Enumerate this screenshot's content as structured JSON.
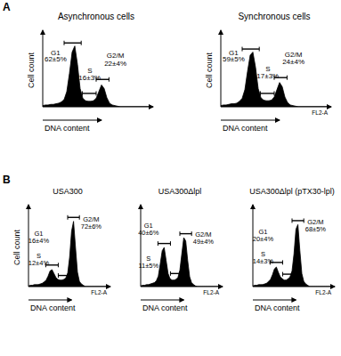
{
  "panels": [
    {
      "label": "A"
    },
    {
      "label": "B"
    }
  ],
  "chart_data": [
    {
      "type": "area",
      "title": "Asynchronous cells",
      "ylabel": "Cell count",
      "xlabel": "DNA content",
      "color": "#000000",
      "tick_labels": false,
      "xlim": [
        0,
        1
      ],
      "ylim": [
        0,
        120
      ],
      "x": [
        0,
        0.025,
        0.05,
        0.075,
        0.1,
        0.125,
        0.15,
        0.175,
        0.2,
        0.225,
        0.25,
        0.275,
        0.3,
        0.325,
        0.35,
        0.375,
        0.4,
        0.425,
        0.45,
        0.475,
        0.5,
        0.525,
        0.55,
        0.575,
        0.6,
        0.625,
        0.65,
        0.675,
        0.7,
        0.725,
        0.75,
        0.775,
        0.8,
        0.825,
        0.85,
        0.875,
        0.9,
        0.925,
        0.95,
        0.975,
        1
      ],
      "values": [
        2,
        3,
        3,
        4,
        4,
        5,
        6,
        8,
        12,
        25,
        55,
        90,
        100,
        70,
        30,
        14,
        10,
        9,
        9,
        10,
        14,
        25,
        36,
        30,
        15,
        6,
        3,
        2,
        1,
        0,
        0,
        0,
        0,
        0,
        0,
        0,
        0,
        0,
        0,
        0,
        0
      ],
      "gates": [
        {
          "start": 0.2,
          "end": 0.36,
          "y": 105
        },
        {
          "start": 0.37,
          "end": 0.5,
          "y": 22
        },
        {
          "start": 0.5,
          "end": 0.62,
          "y": 45
        }
      ],
      "annotations": [
        {
          "text": "G1",
          "x": 0.12,
          "y": 85
        },
        {
          "text": "62±5%",
          "x": 0.12,
          "y": 74
        },
        {
          "text": "S",
          "x": 0.44,
          "y": 55
        },
        {
          "text": "16±3%",
          "x": 0.44,
          "y": 44
        },
        {
          "text": "G2/M",
          "x": 0.68,
          "y": 80
        },
        {
          "text": "22±4%",
          "x": 0.68,
          "y": 68
        }
      ]
    },
    {
      "type": "area",
      "title": "Synchronous cells",
      "ylabel": "Cell count",
      "xlabel": "DNA content",
      "axis_name": "FL2-A",
      "color": "#000000",
      "tick_labels": false,
      "xlim": [
        0,
        1
      ],
      "ylim": [
        0,
        120
      ],
      "x": [
        0,
        0.025,
        0.05,
        0.075,
        0.1,
        0.125,
        0.15,
        0.175,
        0.2,
        0.225,
        0.25,
        0.275,
        0.3,
        0.325,
        0.35,
        0.375,
        0.4,
        0.425,
        0.45,
        0.475,
        0.5,
        0.525,
        0.55,
        0.575,
        0.6,
        0.625,
        0.65,
        0.675,
        0.7,
        0.725,
        0.75,
        0.775,
        0.8,
        0.825,
        0.85,
        0.875,
        0.9,
        0.925,
        0.95,
        0.975,
        1
      ],
      "values": [
        2,
        3,
        3,
        4,
        5,
        5,
        6,
        9,
        14,
        28,
        58,
        85,
        90,
        65,
        30,
        15,
        11,
        10,
        10,
        11,
        16,
        28,
        40,
        33,
        16,
        7,
        3,
        2,
        1,
        0,
        0,
        0,
        0,
        0,
        0,
        0,
        0,
        0,
        0,
        0,
        0
      ],
      "gates": [
        {
          "start": 0.2,
          "end": 0.36,
          "y": 95
        },
        {
          "start": 0.37,
          "end": 0.5,
          "y": 22
        },
        {
          "start": 0.5,
          "end": 0.62,
          "y": 48
        }
      ],
      "annotations": [
        {
          "text": "G1",
          "x": 0.12,
          "y": 85
        },
        {
          "text": "59±5%",
          "x": 0.12,
          "y": 74
        },
        {
          "text": "S",
          "x": 0.44,
          "y": 58
        },
        {
          "text": "17±3%",
          "x": 0.44,
          "y": 47
        },
        {
          "text": "G2/M",
          "x": 0.68,
          "y": 82
        },
        {
          "text": "24±4%",
          "x": 0.68,
          "y": 70
        }
      ]
    },
    {
      "type": "area",
      "title": "USA300",
      "ylabel": "Cell count",
      "xlabel": "DNA content",
      "axis_name": "FL2-A",
      "color": "#000000",
      "tick_labels": false,
      "xlim": [
        0,
        1
      ],
      "ylim": [
        0,
        120
      ],
      "x": [
        0,
        0.025,
        0.05,
        0.075,
        0.1,
        0.125,
        0.15,
        0.175,
        0.2,
        0.225,
        0.25,
        0.275,
        0.3,
        0.325,
        0.35,
        0.375,
        0.4,
        0.425,
        0.45,
        0.475,
        0.5,
        0.525,
        0.55,
        0.575,
        0.6,
        0.625,
        0.65,
        0.675,
        0.7,
        0.725,
        0.75,
        0.775,
        0.8,
        0.825,
        0.85,
        0.875,
        0.9,
        0.925,
        0.95,
        0.975,
        1
      ],
      "values": [
        1,
        2,
        2,
        3,
        3,
        3,
        4,
        5,
        7,
        10,
        16,
        24,
        26,
        20,
        14,
        11,
        10,
        10,
        11,
        13,
        20,
        45,
        85,
        100,
        60,
        22,
        8,
        4,
        2,
        0,
        0,
        0,
        0,
        0,
        0,
        0,
        0,
        0,
        0,
        0,
        0
      ],
      "gates": [
        {
          "start": 0.22,
          "end": 0.38,
          "y": 33
        },
        {
          "start": 0.38,
          "end": 0.5,
          "y": 17
        },
        {
          "start": 0.5,
          "end": 0.65,
          "y": 106
        }
      ],
      "annotations": [
        {
          "text": "G1",
          "x": 0.13,
          "y": 78
        },
        {
          "text": "16±4%",
          "x": 0.13,
          "y": 67
        },
        {
          "text": "S",
          "x": 0.13,
          "y": 44
        },
        {
          "text": "12±4%",
          "x": 0.13,
          "y": 33
        },
        {
          "text": "G2/M",
          "x": 0.8,
          "y": 100
        },
        {
          "text": "72±6%",
          "x": 0.8,
          "y": 89
        }
      ]
    },
    {
      "type": "area",
      "title": "USA300Δlpl",
      "xlabel": "DNA content",
      "axis_name": "FL2-A",
      "color": "#000000",
      "tick_labels": false,
      "xlim": [
        0,
        1
      ],
      "ylim": [
        0,
        120
      ],
      "x": [
        0,
        0.025,
        0.05,
        0.075,
        0.1,
        0.125,
        0.15,
        0.175,
        0.2,
        0.225,
        0.25,
        0.275,
        0.3,
        0.325,
        0.35,
        0.375,
        0.4,
        0.425,
        0.45,
        0.475,
        0.5,
        0.525,
        0.55,
        0.575,
        0.6,
        0.625,
        0.65,
        0.675,
        0.7,
        0.725,
        0.75,
        0.775,
        0.8,
        0.825,
        0.85,
        0.875,
        0.9,
        0.925,
        0.95,
        0.975,
        1
      ],
      "values": [
        1,
        2,
        2,
        3,
        3,
        4,
        5,
        6,
        9,
        16,
        35,
        55,
        60,
        40,
        20,
        12,
        10,
        10,
        11,
        14,
        25,
        50,
        75,
        70,
        40,
        15,
        6,
        3,
        1,
        0,
        0,
        0,
        0,
        0,
        0,
        0,
        0,
        0,
        0,
        0,
        0
      ],
      "gates": [
        {
          "start": 0.22,
          "end": 0.38,
          "y": 66
        },
        {
          "start": 0.38,
          "end": 0.5,
          "y": 20
        },
        {
          "start": 0.5,
          "end": 0.65,
          "y": 81
        }
      ],
      "annotations": [
        {
          "text": "G1",
          "x": 0.1,
          "y": 90
        },
        {
          "text": "40±6%",
          "x": 0.1,
          "y": 79
        },
        {
          "text": "S",
          "x": 0.1,
          "y": 40
        },
        {
          "text": "11±5%",
          "x": 0.1,
          "y": 29
        },
        {
          "text": "G2/M",
          "x": 0.8,
          "y": 76
        },
        {
          "text": "49±4%",
          "x": 0.8,
          "y": 65
        }
      ]
    },
    {
      "type": "area",
      "title": "USA300Δlpl (pTX30-lpl)",
      "xlabel": "DNA content",
      "axis_name": "FL2-A",
      "color": "#000000",
      "tick_labels": false,
      "xlim": [
        0,
        1
      ],
      "ylim": [
        0,
        120
      ],
      "x": [
        0,
        0.025,
        0.05,
        0.075,
        0.1,
        0.125,
        0.15,
        0.175,
        0.2,
        0.225,
        0.25,
        0.275,
        0.3,
        0.325,
        0.35,
        0.375,
        0.4,
        0.425,
        0.45,
        0.475,
        0.5,
        0.525,
        0.55,
        0.575,
        0.6,
        0.625,
        0.65,
        0.675,
        0.7,
        0.725,
        0.75,
        0.775,
        0.8,
        0.825,
        0.85,
        0.875,
        0.9,
        0.925,
        0.95,
        0.975,
        1
      ],
      "values": [
        1,
        2,
        2,
        3,
        3,
        3,
        4,
        5,
        8,
        11,
        18,
        27,
        30,
        22,
        15,
        12,
        10,
        10,
        12,
        15,
        24,
        50,
        88,
        95,
        55,
        20,
        8,
        4,
        2,
        0,
        0,
        0,
        0,
        0,
        0,
        0,
        0,
        0,
        0,
        0,
        0
      ],
      "gates": [
        {
          "start": 0.22,
          "end": 0.38,
          "y": 37
        },
        {
          "start": 0.38,
          "end": 0.5,
          "y": 19
        },
        {
          "start": 0.5,
          "end": 0.65,
          "y": 101
        }
      ],
      "annotations": [
        {
          "text": "G1",
          "x": 0.13,
          "y": 80
        },
        {
          "text": "20±4%",
          "x": 0.13,
          "y": 69
        },
        {
          "text": "S",
          "x": 0.13,
          "y": 46
        },
        {
          "text": "14±3%",
          "x": 0.13,
          "y": 35
        },
        {
          "text": "G2/M",
          "x": 0.8,
          "y": 95
        },
        {
          "text": "68±5%",
          "x": 0.8,
          "y": 84
        }
      ]
    }
  ]
}
